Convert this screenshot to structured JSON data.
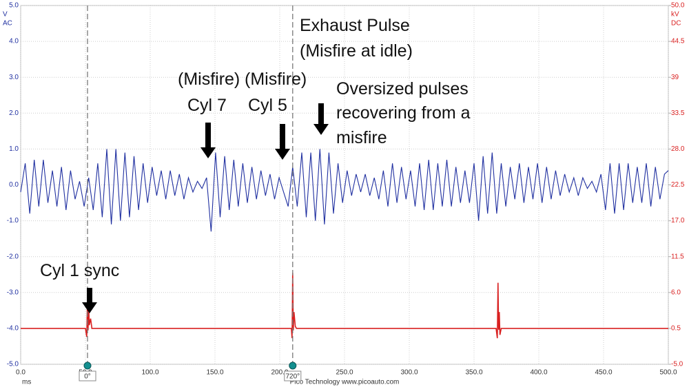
{
  "chart_data": {
    "type": "line",
    "axis_labels": {
      "y": [
        "V",
        "AC"
      ],
      "y2": [
        "kV",
        "DC"
      ],
      "x": "ms"
    },
    "footer": "Pico Technology  www.picoauto.com",
    "xlim": [
      0,
      500
    ],
    "xticks": [
      {
        "value": 0,
        "label": "0.0"
      },
      {
        "value": 50,
        "label": "50.0"
      },
      {
        "value": 100,
        "label": "100.0"
      },
      {
        "value": 150,
        "label": "150.0"
      },
      {
        "value": 200,
        "label": "200.0"
      },
      {
        "value": 250,
        "label": "250.0"
      },
      {
        "value": 300,
        "label": "300.0"
      },
      {
        "value": 350,
        "label": "350.0"
      },
      {
        "value": 400,
        "label": "400.0"
      },
      {
        "value": 450,
        "label": "450.0"
      },
      {
        "value": 500,
        "label": "500.0"
      }
    ],
    "ylim": [
      -5,
      5
    ],
    "yticks": [
      {
        "value": 5,
        "label": "5.0"
      },
      {
        "value": 4,
        "label": "4.0"
      },
      {
        "value": 3,
        "label": "3.0"
      },
      {
        "value": 2,
        "label": "2.0"
      },
      {
        "value": 1,
        "label": "1.0"
      },
      {
        "value": 0,
        "label": "0.0"
      },
      {
        "value": -1,
        "label": "-1.0"
      },
      {
        "value": -2,
        "label": "-2.0"
      },
      {
        "value": -3,
        "label": "-3.0"
      },
      {
        "value": -4,
        "label": "-4.0"
      },
      {
        "value": -5,
        "label": "-5.0"
      }
    ],
    "y2lim": [
      -5,
      50
    ],
    "y2ticks": [
      {
        "value": 50,
        "label": "50.0"
      },
      44.5,
      39,
      33.5,
      {
        "value": 28,
        "label": "28.0"
      },
      22.5,
      {
        "value": 17,
        "label": "17.0"
      },
      11.5,
      {
        "value": 6,
        "label": "6.0"
      },
      0.5,
      {
        "value": -5,
        "label": "-5.0"
      }
    ],
    "grid": true,
    "cursors": [
      {
        "x": 51.6,
        "label": "0°"
      },
      {
        "x": 210,
        "label": "720°"
      }
    ],
    "annotations": [
      {
        "lines": [
          "Exhaust Pulse",
          "(Misfire at idle)"
        ]
      },
      {
        "lines": [
          "(Misfire)",
          "Cyl 7"
        ]
      },
      {
        "lines": [
          "(Misfire)",
          "Cyl 5"
        ]
      },
      {
        "lines": [
          "Oversized pulses",
          "recovering from a",
          "misfire"
        ]
      },
      {
        "lines": [
          "Cyl 1 sync"
        ]
      }
    ],
    "series": [
      {
        "color": "#1f2fa0",
        "x": [
          0,
          3.5,
          7,
          10.5,
          14,
          17.5,
          21,
          24.5,
          28,
          31.5,
          35,
          38.5,
          42,
          45.5,
          49,
          52.5,
          56,
          59.5,
          63,
          66.5,
          70,
          73.5,
          77,
          80.5,
          84,
          87.5,
          91,
          94.5,
          98,
          101.5,
          105,
          108.5,
          112,
          115.5,
          119,
          122.5,
          126,
          129.5,
          133,
          136.5,
          140,
          143.5,
          147,
          150.5,
          154,
          157.5,
          161,
          164.5,
          168,
          171.5,
          175,
          178.5,
          182,
          185.5,
          189,
          192.5,
          196,
          199.5,
          203,
          206.5,
          210,
          213.5,
          217,
          220.5,
          224,
          227.5,
          231,
          234.5,
          238,
          241.5,
          245,
          248.5,
          252,
          255.5,
          259,
          262.5,
          266,
          269.5,
          273,
          276.5,
          280,
          283.5,
          287,
          290.5,
          294,
          297.5,
          301,
          304.5,
          308,
          311.5,
          315,
          318.5,
          322,
          325.5,
          329,
          332.5,
          336,
          339.5,
          343,
          346.5,
          350,
          353.5,
          357,
          360.5,
          364,
          367.5,
          371,
          374.5,
          378,
          381.5,
          385,
          388.5,
          392,
          395.5,
          399,
          402.5,
          406,
          409.5,
          413,
          416.5,
          420,
          423.5,
          427,
          430.5,
          434,
          437.5,
          441,
          444.5,
          448,
          451.5,
          455,
          458.5,
          462,
          465.5,
          469,
          472.5,
          476,
          479.5,
          483,
          486.5,
          490,
          493.5,
          497,
          500
        ],
        "values": [
          -0.2,
          0.6,
          -0.8,
          0.7,
          -0.6,
          0.7,
          -0.5,
          0.4,
          -0.6,
          0.5,
          -0.7,
          0.4,
          -0.4,
          0.1,
          -0.6,
          0.2,
          -0.7,
          0.6,
          -0.9,
          1.0,
          -1.1,
          1.0,
          -1.0,
          0.9,
          -0.9,
          0.8,
          -0.7,
          0.6,
          -0.5,
          0.5,
          -0.3,
          0.4,
          -0.4,
          0.4,
          -0.3,
          0.3,
          -0.4,
          0.2,
          -0.2,
          0.1,
          -0.1,
          0.2,
          -1.3,
          0.9,
          -0.9,
          0.8,
          -0.7,
          0.7,
          -0.6,
          0.6,
          -0.5,
          0.5,
          -0.4,
          0.4,
          -0.3,
          0.3,
          -0.4,
          0.2,
          -0.2,
          -0.6,
          0.5,
          -0.6,
          0.9,
          -0.9,
          0.9,
          -1.0,
          1.0,
          -1.1,
          0.9,
          -0.8,
          0.6,
          -0.5,
          0.4,
          -0.3,
          0.3,
          -0.2,
          0.3,
          -0.3,
          0.2,
          -0.4,
          0.4,
          -0.6,
          0.6,
          -0.5,
          0.5,
          -0.4,
          0.4,
          -0.6,
          0.6,
          -0.7,
          0.7,
          -0.7,
          0.6,
          -0.6,
          0.7,
          -0.6,
          0.5,
          -0.5,
          0.4,
          -0.5,
          0.6,
          -1.0,
          0.8,
          -0.8,
          0.9,
          -0.8,
          0.6,
          -0.6,
          0.5,
          -0.4,
          0.6,
          -0.5,
          0.5,
          -0.4,
          0.6,
          -0.5,
          0.5,
          -0.4,
          0.4,
          -0.3,
          0.3,
          -0.2,
          0.2,
          -0.3,
          0.2,
          -0.1,
          0.1,
          -0.2,
          0.3,
          -0.7,
          0.6,
          -0.8,
          0.6,
          -0.7,
          0.6,
          -0.5,
          0.5,
          -0.5,
          0.6,
          -0.6,
          0.5,
          -0.4,
          0.3,
          0.4
        ]
      },
      {
        "color": "#d92020",
        "axis": "y2",
        "x": [
          0,
          50,
          51,
          51.6,
          52,
          52.5,
          53,
          54,
          55,
          209,
          209.5,
          210,
          210.5,
          211,
          212,
          213,
          367,
          368,
          368.5,
          369,
          369.5,
          370,
          371,
          500
        ],
        "values": [
          0.5,
          0.5,
          -0.8,
          5.5,
          0.2,
          4,
          1.0,
          2,
          0.5,
          0.5,
          -1,
          9,
          0.2,
          3,
          0.8,
          0.5,
          0.5,
          -1,
          7.5,
          0.3,
          3,
          -0.5,
          0.5,
          0.5
        ]
      }
    ]
  }
}
